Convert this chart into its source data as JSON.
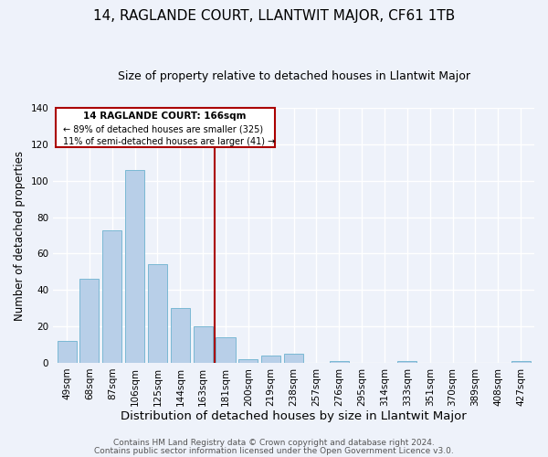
{
  "title": "14, RAGLANDE COURT, LLANTWIT MAJOR, CF61 1TB",
  "subtitle": "Size of property relative to detached houses in Llantwit Major",
  "xlabel": "Distribution of detached houses by size in Llantwit Major",
  "ylabel": "Number of detached properties",
  "bar_labels": [
    "49sqm",
    "68sqm",
    "87sqm",
    "106sqm",
    "125sqm",
    "144sqm",
    "163sqm",
    "181sqm",
    "200sqm",
    "219sqm",
    "238sqm",
    "257sqm",
    "276sqm",
    "295sqm",
    "314sqm",
    "333sqm",
    "351sqm",
    "370sqm",
    "389sqm",
    "408sqm",
    "427sqm"
  ],
  "bar_values": [
    12,
    46,
    73,
    106,
    54,
    30,
    20,
    14,
    2,
    4,
    5,
    0,
    1,
    0,
    0,
    1,
    0,
    0,
    0,
    0,
    1
  ],
  "bar_color": "#b8cfe8",
  "bar_edge_color": "#7ab8d4",
  "vline_color": "#aa0000",
  "ylim": [
    0,
    140
  ],
  "yticks": [
    0,
    20,
    40,
    60,
    80,
    100,
    120,
    140
  ],
  "annotation_box_title": "14 RAGLANDE COURT: 166sqm",
  "annotation_line1": "← 89% of detached houses are smaller (325)",
  "annotation_line2": "11% of semi-detached houses are larger (41) →",
  "footer1": "Contains HM Land Registry data © Crown copyright and database right 2024.",
  "footer2": "Contains public sector information licensed under the Open Government Licence v3.0.",
  "background_color": "#eef2fa",
  "grid_color": "#ffffff",
  "title_fontsize": 11,
  "subtitle_fontsize": 9,
  "xlabel_fontsize": 9.5,
  "ylabel_fontsize": 8.5,
  "tick_fontsize": 7.5,
  "footer_fontsize": 6.5
}
